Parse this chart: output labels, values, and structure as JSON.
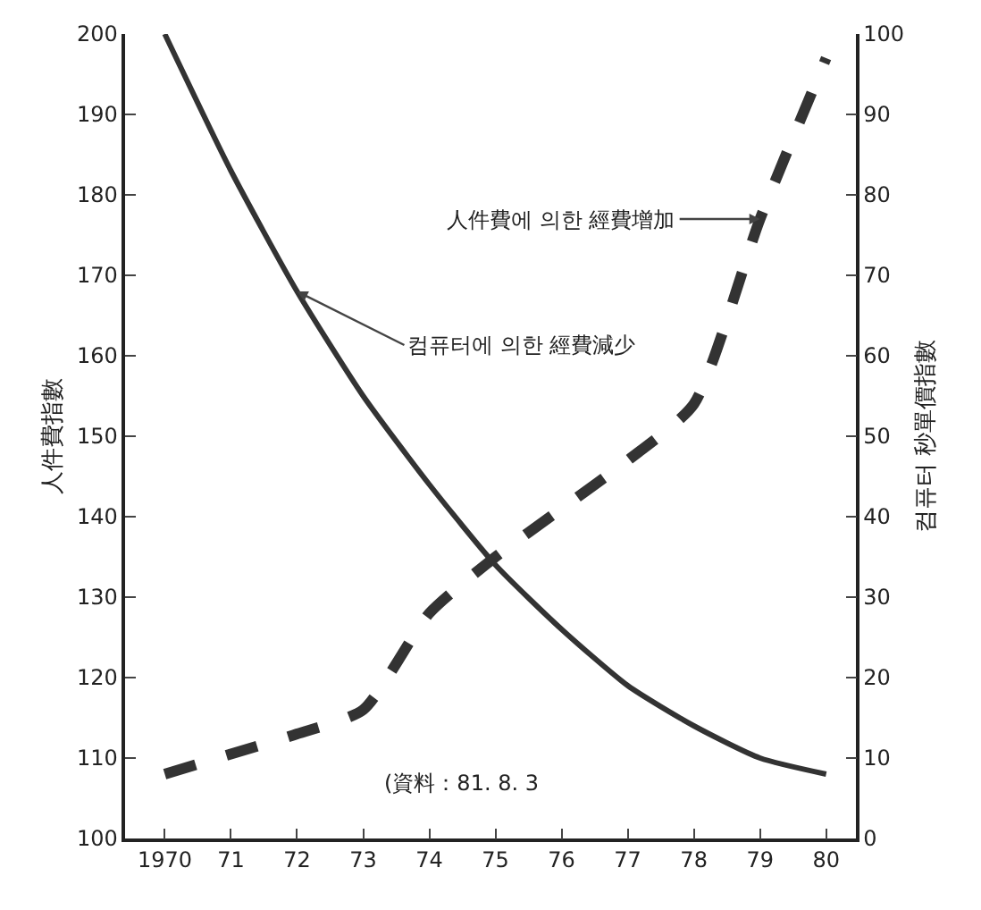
{
  "chart_data": {
    "type": "line",
    "x": [
      1970,
      1971,
      1972,
      1973,
      1974,
      1975,
      1976,
      1977,
      1978,
      1979,
      1980
    ],
    "series": [
      {
        "color": "#333333",
        "line_style": "dashed",
        "values": [
          108,
          110.5,
          113,
          116,
          128,
          135,
          141,
          147,
          154,
          177,
          197
        ]
      },
      {
        "color": "#333333",
        "line_style": "solid",
        "axis": "y2",
        "values": [
          100,
          83,
          68,
          55,
          44,
          34,
          26,
          19,
          14,
          10,
          8
        ]
      }
    ],
    "ylabel": "人件費指數",
    "y2label": "컴퓨터 秒單價指數",
    "xlim": [
      1969.4,
      1980.45
    ],
    "xticks": [
      {
        "value": 1970,
        "label": "1970"
      },
      {
        "value": 1971,
        "label": "71"
      },
      {
        "value": 1972,
        "label": "72"
      },
      {
        "value": 1973,
        "label": "73"
      },
      {
        "value": 1974,
        "label": "74"
      },
      {
        "value": 1975,
        "label": "75"
      },
      {
        "value": 1976,
        "label": "76"
      },
      {
        "value": 1977,
        "label": "77"
      },
      {
        "value": 1978,
        "label": "78"
      },
      {
        "value": 1979,
        "label": "79"
      },
      {
        "value": 1980,
        "label": "80"
      }
    ],
    "ylim": [
      100,
      200
    ],
    "yticks": [
      100,
      110,
      120,
      130,
      140,
      150,
      160,
      170,
      180,
      190,
      200
    ],
    "y2lim": [
      0,
      100
    ],
    "y2ticks": [
      0,
      10,
      20,
      30,
      40,
      50,
      60,
      70,
      80,
      90,
      100
    ],
    "grid": false,
    "marker": "none",
    "annotations": [
      {
        "text": "人件費에 의한 經費增加",
        "x": 1979,
        "y": 177
      },
      {
        "text": "컴퓨터에 의한 經費減少",
        "x": 1972,
        "y": 168
      },
      "(資料：81. 8. 3"
    ]
  }
}
